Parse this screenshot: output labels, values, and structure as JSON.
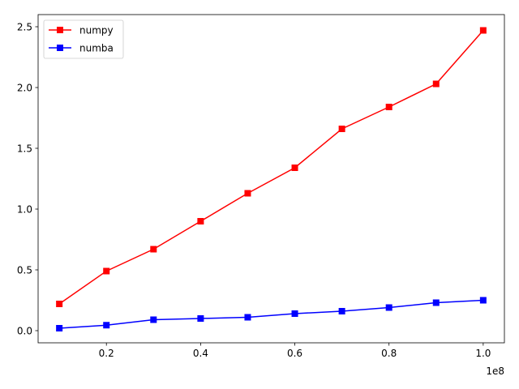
{
  "chart_data": {
    "type": "line",
    "x": [
      10000000,
      20000000,
      30000000,
      40000000,
      50000000,
      60000000,
      70000000,
      80000000,
      90000000,
      100000000
    ],
    "series": [
      {
        "name": "numpy",
        "color": "#ff0000",
        "marker": "square",
        "values": [
          0.22,
          0.49,
          0.67,
          0.9,
          1.13,
          1.34,
          1.66,
          1.84,
          2.03,
          2.47
        ]
      },
      {
        "name": "numba",
        "color": "#0000ff",
        "marker": "square",
        "values": [
          0.02,
          0.045,
          0.09,
          0.1,
          0.11,
          0.14,
          0.16,
          0.19,
          0.23,
          0.25
        ]
      }
    ],
    "xlim": [
      5500000,
      104500000
    ],
    "ylim": [
      -0.1,
      2.6
    ],
    "xticks": [
      20000000,
      40000000,
      60000000,
      80000000,
      100000000
    ],
    "xtick_labels": [
      "0.2",
      "0.4",
      "0.6",
      "0.8",
      "1.0"
    ],
    "x_offset_label": "1e8",
    "yticks": [
      0.0,
      0.5,
      1.0,
      1.5,
      2.0,
      2.5
    ],
    "ytick_labels": [
      "0.0",
      "0.5",
      "1.0",
      "1.5",
      "2.0",
      "2.5"
    ],
    "title": "",
    "xlabel": "",
    "ylabel": "",
    "grid": false,
    "legend_position": "top-left"
  }
}
